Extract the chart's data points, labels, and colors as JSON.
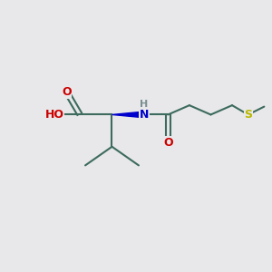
{
  "bg_color": "#e8e8ea",
  "bond_color": "#3d6b5e",
  "O_color": "#cc0000",
  "N_color": "#0000cc",
  "S_color": "#b8b800",
  "H_color": "#7a9090",
  "line_width": 1.5,
  "font_size_atom": 9,
  "fig_size": [
    3.0,
    3.0
  ],
  "dpi": 100,
  "xlim": [
    0,
    10
  ],
  "ylim": [
    0,
    10
  ]
}
